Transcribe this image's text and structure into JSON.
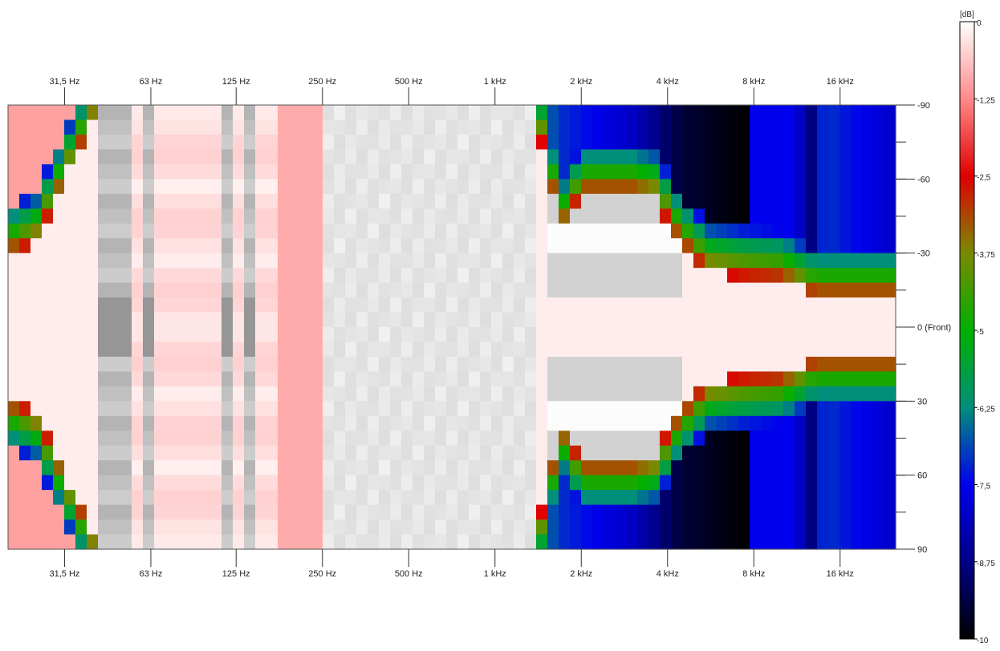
{
  "chart_data": {
    "type": "heatmap",
    "title": "",
    "xlabel": "",
    "ylabel": "",
    "x_scale": "log",
    "x_ticks": [
      {
        "hz": 31.5,
        "label": "31,5 Hz"
      },
      {
        "hz": 63,
        "label": "63 Hz"
      },
      {
        "hz": 125,
        "label": "125 Hz"
      },
      {
        "hz": 250,
        "label": "250 Hz"
      },
      {
        "hz": 500,
        "label": "500 Hz"
      },
      {
        "hz": 1000,
        "label": "1 kHz"
      },
      {
        "hz": 2000,
        "label": "2 kHz"
      },
      {
        "hz": 4000,
        "label": "4 kHz"
      },
      {
        "hz": 8000,
        "label": "8 kHz"
      },
      {
        "hz": 16000,
        "label": "16 kHz"
      }
    ],
    "xlim_hz": [
      20,
      25000
    ],
    "y_ticks": [
      {
        "deg": -90,
        "label": "-90"
      },
      {
        "deg": -60,
        "label": "-60"
      },
      {
        "deg": -30,
        "label": "-30"
      },
      {
        "deg": 0,
        "label": "0 (Front)"
      },
      {
        "deg": 30,
        "label": "30"
      },
      {
        "deg": 60,
        "label": "60"
      },
      {
        "deg": 90,
        "label": "90"
      }
    ],
    "ylim_deg": [
      -90,
      90
    ],
    "colorbar": {
      "unit": "[dB]",
      "range_db": [
        -10,
        0
      ],
      "ticks": [
        "0",
        "-1,25",
        "-2,5",
        "-3,75",
        "-5",
        "-6,25",
        "-7,5",
        "-8,75",
        "-10"
      ],
      "stops": [
        {
          "db": 0,
          "color": "#ffffff"
        },
        {
          "db": -1.25,
          "color": "#ff8a8a"
        },
        {
          "db": -2.5,
          "color": "#e00000"
        },
        {
          "db": -3.75,
          "color": "#7a8a00"
        },
        {
          "db": -5,
          "color": "#00b000"
        },
        {
          "db": -6.25,
          "color": "#008f7a"
        },
        {
          "db": -7.5,
          "color": "#0000ee"
        },
        {
          "db": -8.75,
          "color": "#000088"
        },
        {
          "db": -10,
          "color": "#000000"
        }
      ]
    },
    "grey_bands_hz": [
      [
        38,
        55
      ],
      [
        57,
        62
      ],
      [
        112,
        122
      ],
      [
        128,
        140
      ]
    ],
    "beamwidth_edge_deg": [
      [
        20,
        35
      ],
      [
        25,
        40
      ],
      [
        40,
        90
      ],
      [
        200,
        90
      ],
      [
        1000,
        90
      ],
      [
        1400,
        90
      ],
      [
        1700,
        45
      ],
      [
        2000,
        60
      ],
      [
        2500,
        60
      ],
      [
        3000,
        60
      ],
      [
        3600,
        58
      ],
      [
        4400,
        40
      ],
      [
        5500,
        28
      ],
      [
        7500,
        26
      ],
      [
        10000,
        25
      ],
      [
        13000,
        18
      ],
      [
        25000,
        18
      ]
    ],
    "side_lobe_db": [
      [
        20,
        -1
      ],
      [
        1400,
        -1
      ],
      [
        1600,
        -7
      ],
      [
        3000,
        -8
      ],
      [
        4500,
        -9.5
      ],
      [
        7500,
        -10
      ],
      [
        8000,
        -7.5
      ],
      [
        11000,
        -7.5
      ],
      [
        13000,
        -9
      ],
      [
        14000,
        -7
      ],
      [
        25000,
        -8
      ]
    ]
  }
}
